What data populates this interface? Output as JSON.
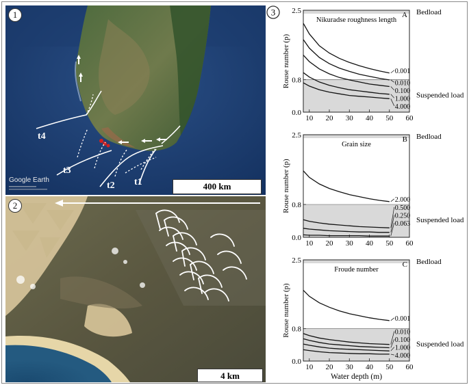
{
  "panel_1": {
    "number": "1",
    "transect_labels": [
      "t4",
      "t3",
      "t2",
      "t1"
    ],
    "watermark": "Google Earth",
    "scale_label": "400 km"
  },
  "panel_2": {
    "number": "2",
    "scale_label": "4 km"
  },
  "panel_3": {
    "number": "3"
  },
  "chart_data": [
    {
      "type": "line",
      "panel_letter": "A",
      "subtitle": "Nikuradse roughness length",
      "ylabel": "Rouse number (p)",
      "xlabel": "",
      "x_ticks": [
        "10",
        "20",
        "30",
        "40",
        "50",
        "60"
      ],
      "y_ticks": [
        "0.0",
        "0.8",
        "2.5"
      ],
      "xlim": [
        7,
        60
      ],
      "ylim": [
        0,
        2.5
      ],
      "zones": [
        {
          "label": "Bedload",
          "from": 2.5,
          "to": 2.5
        },
        {
          "label": "Suspended load",
          "from": 0.0,
          "to": 0.8
        }
      ],
      "x": [
        7,
        10,
        15,
        20,
        25,
        30,
        35,
        40,
        45,
        50
      ],
      "series": [
        {
          "name": "0.001",
          "values": [
            2.18,
            1.92,
            1.63,
            1.45,
            1.32,
            1.22,
            1.14,
            1.07,
            1.01,
            0.96
          ]
        },
        {
          "name": "0.010",
          "values": [
            1.78,
            1.57,
            1.34,
            1.19,
            1.08,
            1.0,
            0.93,
            0.88,
            0.83,
            0.79
          ]
        },
        {
          "name": "0.100",
          "values": [
            1.4,
            1.24,
            1.06,
            0.94,
            0.85,
            0.79,
            0.74,
            0.69,
            0.66,
            0.63
          ]
        },
        {
          "name": "1.000",
          "values": [
            0.97,
            0.86,
            0.74,
            0.66,
            0.6,
            0.55,
            0.52,
            0.49,
            0.46,
            0.44
          ]
        },
        {
          "name": "4.000",
          "values": [
            0.72,
            0.64,
            0.55,
            0.49,
            0.45,
            0.41,
            0.39,
            0.37,
            0.35,
            0.33
          ]
        }
      ]
    },
    {
      "type": "line",
      "panel_letter": "B",
      "subtitle": "Grain size",
      "ylabel": "Rouse number (p)",
      "xlabel": "",
      "x_ticks": [
        "10",
        "20",
        "30",
        "40",
        "50",
        "60"
      ],
      "y_ticks": [
        "0.0",
        "0.8",
        "2.5"
      ],
      "xlim": [
        7,
        60
      ],
      "ylim": [
        0,
        2.5
      ],
      "zones": [
        {
          "label": "Bedload",
          "from": 2.5,
          "to": 2.5
        },
        {
          "label": "Suspended load",
          "from": 0.0,
          "to": 0.8
        }
      ],
      "x": [
        7,
        10,
        15,
        20,
        25,
        30,
        35,
        40,
        45,
        50
      ],
      "series": [
        {
          "name": "2.000",
          "values": [
            1.62,
            1.46,
            1.3,
            1.19,
            1.11,
            1.04,
            0.99,
            0.94,
            0.9,
            0.87
          ]
        },
        {
          "name": "0.500",
          "values": [
            0.43,
            0.39,
            0.35,
            0.32,
            0.3,
            0.28,
            0.26,
            0.25,
            0.24,
            0.23
          ]
        },
        {
          "name": "0.250",
          "values": [
            0.22,
            0.2,
            0.18,
            0.16,
            0.15,
            0.14,
            0.13,
            0.13,
            0.12,
            0.12
          ]
        },
        {
          "name": "0.063",
          "values": [
            0.06,
            0.05,
            0.05,
            0.04,
            0.04,
            0.04,
            0.04,
            0.03,
            0.03,
            0.03
          ]
        }
      ]
    },
    {
      "type": "line",
      "panel_letter": "C",
      "subtitle": "Froude number",
      "ylabel": "Rouse number (p)",
      "xlabel": "Water depth (m)",
      "x_ticks": [
        "10",
        "20",
        "30",
        "40",
        "50",
        "60"
      ],
      "y_ticks": [
        "0.0",
        "0.8",
        "2.5"
      ],
      "xlim": [
        7,
        60
      ],
      "ylim": [
        0,
        2.5
      ],
      "zones": [
        {
          "label": "Bedload",
          "from": 2.5,
          "to": 2.5
        },
        {
          "label": "Suspended load",
          "from": 0.0,
          "to": 0.8
        }
      ],
      "x": [
        7,
        10,
        15,
        20,
        25,
        30,
        35,
        40,
        45,
        50
      ],
      "series": [
        {
          "name": "0.001",
          "values": [
            1.75,
            1.6,
            1.44,
            1.33,
            1.24,
            1.17,
            1.12,
            1.07,
            1.03,
            1.0
          ]
        },
        {
          "name": "0.010",
          "values": [
            0.68,
            0.63,
            0.57,
            0.53,
            0.5,
            0.47,
            0.45,
            0.43,
            0.42,
            0.41
          ]
        },
        {
          "name": "0.100",
          "values": [
            0.55,
            0.51,
            0.46,
            0.42,
            0.4,
            0.38,
            0.36,
            0.35,
            0.34,
            0.33
          ]
        },
        {
          "name": "1.000",
          "values": [
            0.42,
            0.39,
            0.35,
            0.32,
            0.3,
            0.29,
            0.28,
            0.27,
            0.26,
            0.25
          ]
        },
        {
          "name": "4.000",
          "values": [
            0.28,
            0.26,
            0.23,
            0.21,
            0.2,
            0.19,
            0.18,
            0.18,
            0.17,
            0.17
          ]
        }
      ]
    }
  ]
}
